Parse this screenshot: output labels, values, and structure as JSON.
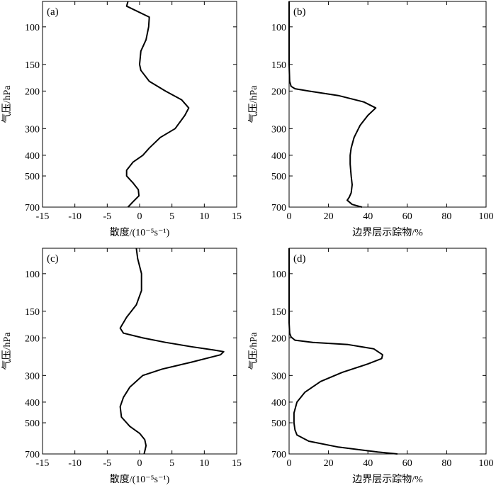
{
  "chart_data": [
    {
      "type": "line",
      "panel_label": "(a)",
      "xlabel": "散度/(10⁻⁵s⁻¹)",
      "ylabel": "气压/hPa",
      "xlim": [
        -15,
        15
      ],
      "xticks": [
        -15,
        -10,
        -5,
        0,
        5,
        10,
        15
      ],
      "ylim": [
        76,
        700
      ],
      "yscale": "log",
      "yticks": [
        100,
        150,
        200,
        300,
        400,
        500,
        700
      ],
      "grid": false,
      "series": [
        {
          "color": "#000000",
          "x": [
            -1.8,
            -2.0,
            1.5,
            1.4,
            1.0,
            0.2,
            0.0,
            0.2,
            1.5,
            4.0,
            6.5,
            7.6,
            7.0,
            5.5,
            3.2,
            1.5,
            0.5,
            -1.0,
            -2.0,
            -2.0,
            -1.0,
            -0.2,
            -0.1,
            -1.0,
            -1.8
          ],
          "y": [
            76,
            80,
            90,
            100,
            115,
            130,
            150,
            160,
            180,
            200,
            220,
            240,
            260,
            300,
            330,
            370,
            400,
            430,
            470,
            500,
            540,
            580,
            620,
            660,
            700
          ]
        }
      ]
    },
    {
      "type": "line",
      "panel_label": "(b)",
      "xlabel": "边界层示踪物/%",
      "ylabel": "气压/hPa",
      "xlim": [
        0,
        100
      ],
      "xticks": [
        0,
        20,
        40,
        60,
        80,
        100
      ],
      "ylim": [
        76,
        700
      ],
      "yscale": "log",
      "yticks": [
        100,
        150,
        200,
        300,
        400,
        500,
        700
      ],
      "grid": false,
      "series": [
        {
          "color": "#000000",
          "x": [
            0,
            0,
            0.3,
            1,
            3,
            10,
            25,
            38,
            44,
            40,
            36,
            33,
            31.5,
            31,
            31,
            31.5,
            32,
            31.5,
            30.5,
            29.5,
            32,
            37
          ],
          "y": [
            76,
            150,
            180,
            190,
            195,
            200,
            210,
            225,
            240,
            260,
            290,
            330,
            370,
            400,
            440,
            500,
            550,
            600,
            630,
            650,
            680,
            700
          ]
        }
      ]
    },
    {
      "type": "line",
      "panel_label": "(c)",
      "xlabel": "散度/(10⁻⁵s⁻¹)",
      "ylabel": "气压/hPa",
      "xlim": [
        -15,
        15
      ],
      "xticks": [
        -15,
        -10,
        -5,
        0,
        5,
        10,
        15
      ],
      "ylim": [
        76,
        700
      ],
      "yscale": "log",
      "yticks": [
        100,
        150,
        200,
        300,
        400,
        500,
        700
      ],
      "grid": false,
      "series": [
        {
          "color": "#000000",
          "x": [
            -0.5,
            -0.3,
            0.3,
            0.3,
            -0.5,
            -2.0,
            -3.0,
            -2.5,
            0.5,
            4.0,
            8.0,
            11.5,
            13.0,
            12.5,
            8.0,
            3.5,
            0.5,
            -1.5,
            -2.5,
            -3.0,
            -2.8,
            -1.5,
            0.0,
            0.8,
            1.0,
            0.8,
            0.7
          ],
          "y": [
            76,
            85,
            100,
            120,
            140,
            160,
            180,
            190,
            200,
            210,
            220,
            228,
            232,
            240,
            260,
            280,
            300,
            340,
            380,
            420,
            470,
            520,
            560,
            600,
            640,
            680,
            700
          ]
        }
      ]
    },
    {
      "type": "line",
      "panel_label": "(d)",
      "xlabel": "边界层示踪物/%",
      "ylabel": "气压/hPa",
      "xlim": [
        0,
        100
      ],
      "xticks": [
        0,
        20,
        40,
        60,
        80,
        100
      ],
      "ylim": [
        76,
        700
      ],
      "yscale": "log",
      "yticks": [
        100,
        150,
        200,
        300,
        400,
        500,
        700
      ],
      "grid": false,
      "series": [
        {
          "color": "#000000",
          "x": [
            0,
            0,
            0.3,
            1,
            3,
            12,
            30,
            43,
            47.5,
            47,
            40,
            27,
            16,
            8,
            4,
            2.5,
            2.5,
            3,
            4,
            10,
            25,
            45,
            55
          ],
          "y": [
            76,
            170,
            190,
            198,
            205,
            210,
            215,
            225,
            240,
            250,
            265,
            290,
            320,
            360,
            400,
            450,
            500,
            540,
            570,
            610,
            650,
            685,
            700
          ]
        }
      ]
    }
  ]
}
